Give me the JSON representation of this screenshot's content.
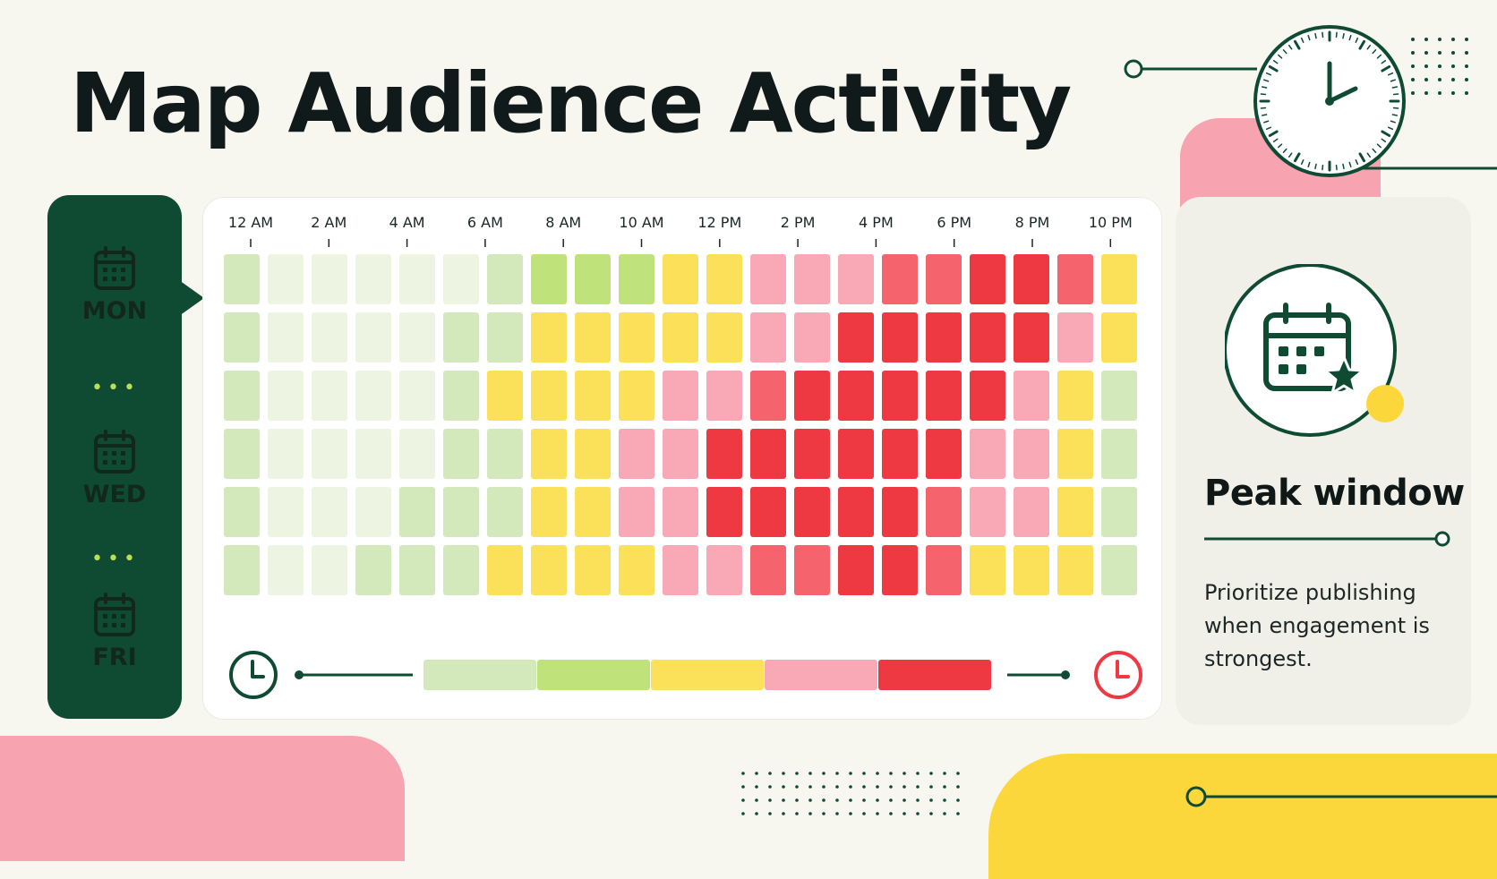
{
  "title": "Map Audience Activity",
  "days": [
    {
      "label": "MON",
      "color": "#b7e05a"
    },
    {
      "label": "WED",
      "color": "#fbd73b"
    },
    {
      "label": "FRI",
      "color": "#f7a3b0"
    }
  ],
  "side": {
    "heading": "Peak window",
    "text": "Prioritize publishing when engagement is strongest."
  },
  "colors": {
    "dark_green": "#0f4b33",
    "levels": [
      "#eef4e2",
      "#d3e9bb",
      "#bfe37a",
      "#fbe05a",
      "#f9a9b5",
      "#f5636c",
      "#ee3842"
    ]
  },
  "chart_data": {
    "type": "heatmap",
    "x_ticks": [
      "12 AM",
      "2 AM",
      "4 AM",
      "6 AM",
      "8 AM",
      "10 AM",
      "12 PM",
      "2 PM",
      "4 PM",
      "6 PM",
      "8 PM",
      "10 PM"
    ],
    "level_scale": "0 = lowest activity, 6 = highest activity",
    "values": [
      [
        1,
        0,
        0,
        0,
        0,
        0,
        1,
        2,
        2,
        2,
        3,
        3,
        4,
        4,
        4,
        5,
        5,
        6,
        6,
        5,
        3
      ],
      [
        1,
        0,
        0,
        0,
        0,
        1,
        1,
        3,
        3,
        3,
        3,
        3,
        4,
        4,
        6,
        6,
        6,
        6,
        6,
        4,
        3
      ],
      [
        1,
        0,
        0,
        0,
        0,
        1,
        3,
        3,
        3,
        3,
        4,
        4,
        5,
        6,
        6,
        6,
        6,
        6,
        4,
        3,
        1
      ],
      [
        1,
        0,
        0,
        0,
        0,
        1,
        1,
        3,
        3,
        4,
        4,
        6,
        6,
        6,
        6,
        6,
        6,
        4,
        4,
        3,
        1
      ],
      [
        1,
        0,
        0,
        0,
        1,
        1,
        1,
        3,
        3,
        4,
        4,
        6,
        6,
        6,
        6,
        6,
        5,
        4,
        4,
        3,
        1
      ],
      [
        1,
        0,
        0,
        1,
        1,
        1,
        3,
        3,
        3,
        3,
        4,
        4,
        5,
        5,
        6,
        6,
        5,
        3,
        3,
        3,
        1
      ]
    ],
    "legend_scale": [
      "#d3e9bb",
      "#bfe37a",
      "#fbe05a",
      "#f9a9b5",
      "#ee3842"
    ]
  }
}
